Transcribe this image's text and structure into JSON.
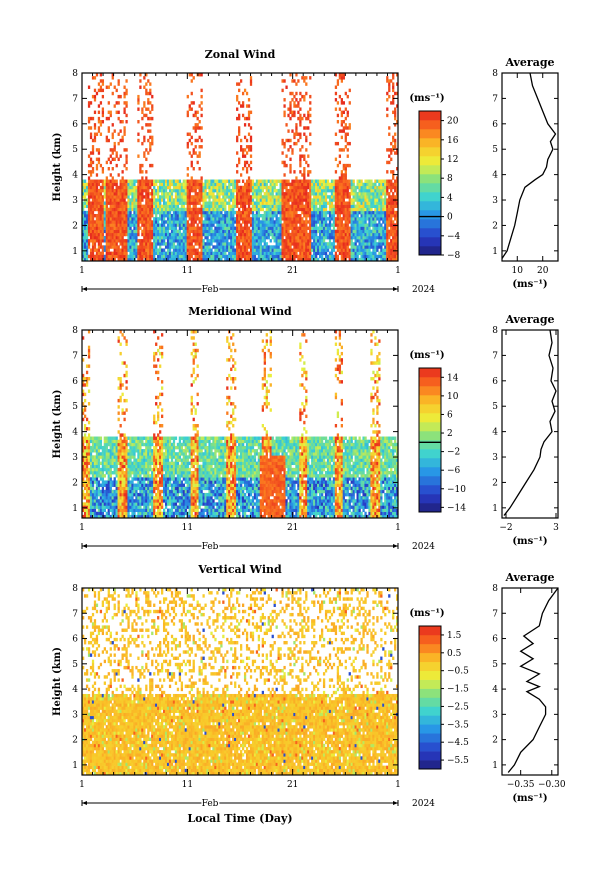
{
  "figure": {
    "xlabel": "Local Time (Day)"
  },
  "chart_data": [
    {
      "type": "heatmap",
      "title": "Zonal Wind",
      "ylabel": "Height (km)",
      "x_tick_labels": [
        "1",
        "11",
        "21",
        "1"
      ],
      "month_label": "Feb",
      "year_label": "2024",
      "yticks": [
        1,
        2,
        3,
        4,
        5,
        6,
        7,
        8
      ],
      "ylim": [
        0.6,
        8.0
      ],
      "colorbar": {
        "unit": "(ms⁻¹)",
        "range": [
          -8,
          22
        ],
        "tick_values": [
          -8,
          -4,
          0,
          4,
          8,
          12,
          16,
          20
        ],
        "tick_labels": [
          "−8",
          "−4",
          "0",
          "4",
          "8",
          "12",
          "16",
          "20"
        ],
        "zero_line": 0
      },
      "average_profile": {
        "title": "Average",
        "xlabel": "(ms⁻¹)",
        "xlim": [
          4,
          26
        ],
        "x_tick_values": [
          10,
          20
        ],
        "x_tick_labels": [
          "10",
          "20"
        ],
        "heights": [
          0.7,
          1.0,
          1.5,
          2.0,
          2.5,
          3.0,
          3.5,
          3.8,
          4.0,
          4.3,
          4.6,
          5.0,
          5.3,
          5.6,
          6.0,
          6.5,
          7.0,
          7.5,
          8.0
        ],
        "values": [
          4,
          6,
          7.5,
          9,
          10,
          11,
          13,
          17,
          20,
          21.5,
          22,
          24,
          23,
          25,
          22,
          20,
          18,
          16,
          15
        ]
      }
    },
    {
      "type": "heatmap",
      "title": "Meridional Wind",
      "ylabel": "Height (km)",
      "x_tick_labels": [
        "1",
        "11",
        "21",
        "1"
      ],
      "month_label": "Feb",
      "year_label": "2024",
      "yticks": [
        1,
        2,
        3,
        4,
        5,
        6,
        7,
        8
      ],
      "ylim": [
        0.6,
        8.0
      ],
      "colorbar": {
        "unit": "(ms⁻¹)",
        "range": [
          -15,
          16
        ],
        "tick_values": [
          -14,
          -10,
          -6,
          -2,
          2,
          6,
          10,
          14
        ],
        "tick_labels": [
          "−14",
          "−10",
          "−6",
          "−2",
          "2",
          "6",
          "10",
          "14"
        ],
        "zero_line": 0
      },
      "average_profile": {
        "title": "Average",
        "xlabel": "(ms⁻¹)",
        "xlim": [
          -2.4,
          3.2
        ],
        "x_tick_values": [
          -2,
          3
        ],
        "x_tick_labels": [
          "−2",
          "3"
        ],
        "heights": [
          0.7,
          1.0,
          1.5,
          2.0,
          2.5,
          3.0,
          3.3,
          3.6,
          4.0,
          4.4,
          4.8,
          5.2,
          5.6,
          6.0,
          6.5,
          7.0,
          7.5,
          8.0
        ],
        "values": [
          -2.2,
          -1.6,
          -0.8,
          0.0,
          0.8,
          1.4,
          1.5,
          1.8,
          2.6,
          2.4,
          2.9,
          2.6,
          3.0,
          2.5,
          2.7,
          2.3,
          2.6,
          2.4
        ]
      }
    },
    {
      "type": "heatmap",
      "title": "Vertical Wind",
      "ylabel": "Height (km)",
      "x_tick_labels": [
        "1",
        "11",
        "21",
        "1"
      ],
      "month_label": "Feb",
      "year_label": "2024",
      "yticks": [
        1,
        2,
        3,
        4,
        5,
        6,
        7,
        8
      ],
      "ylim": [
        0.6,
        8.0
      ],
      "colorbar": {
        "unit": "(ms⁻¹)",
        "range": [
          -6,
          2
        ],
        "tick_values": [
          -5.5,
          -4.5,
          -3.5,
          -2.5,
          -1.5,
          -0.5,
          0.5,
          1.5
        ],
        "tick_labels": [
          "−5.5",
          "−4.5",
          "−3.5",
          "−2.5",
          "−1.5",
          "−0.5",
          "0.5",
          "1.5"
        ]
      },
      "average_profile": {
        "title": "Average",
        "xlabel": "(ms⁻¹)",
        "xlim": [
          -0.38,
          -0.29
        ],
        "x_tick_values": [
          -0.35,
          -0.3
        ],
        "x_tick_labels": [
          "−0.35",
          "−0.30"
        ],
        "heights": [
          0.7,
          1.0,
          1.5,
          2.0,
          2.5,
          3.0,
          3.3,
          3.6,
          3.9,
          4.1,
          4.3,
          4.6,
          4.9,
          5.2,
          5.5,
          5.8,
          6.1,
          6.5,
          7.0,
          7.5,
          8.0
        ],
        "values": [
          -0.37,
          -0.36,
          -0.35,
          -0.33,
          -0.32,
          -0.31,
          -0.31,
          -0.32,
          -0.34,
          -0.32,
          -0.34,
          -0.32,
          -0.35,
          -0.33,
          -0.35,
          -0.33,
          -0.345,
          -0.32,
          -0.315,
          -0.305,
          -0.29
        ]
      }
    }
  ]
}
